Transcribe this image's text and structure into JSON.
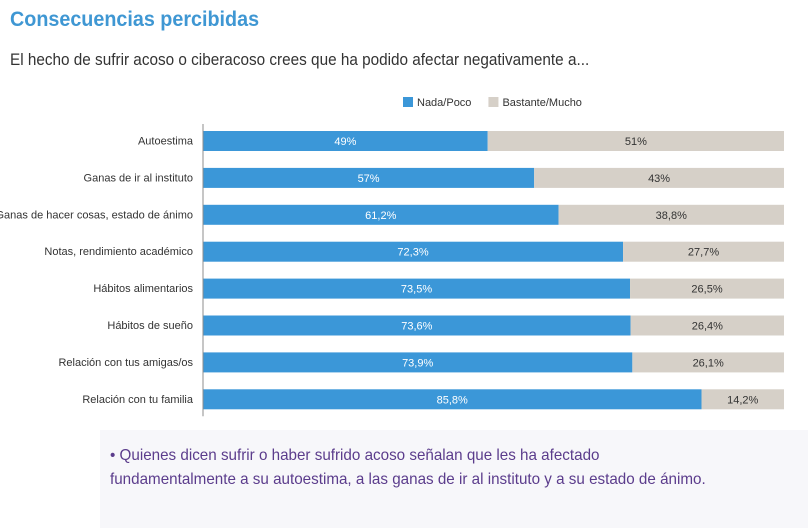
{
  "header": {
    "title": "Consecuencias percibidas",
    "subtitle": "El hecho de sufrir acoso o ciberacoso crees que ha podido afectar negativamente a..."
  },
  "chart_data": {
    "type": "bar",
    "orientation": "horizontal",
    "stacked": true,
    "categories": [
      "Autoestima",
      "Ganas de ir al instituto",
      "Ganas de hacer cosas, estado de ánimo",
      "Notas, rendimiento académico",
      "Hábitos alimentarios",
      "Hábitos de sueño",
      "Relación con tus amigas/os",
      "Relación con tu familia"
    ],
    "series": [
      {
        "name": "Nada/Poco",
        "color": "#3b97d8",
        "values": [
          49,
          57,
          61.2,
          72.3,
          73.5,
          73.6,
          73.9,
          85.8
        ],
        "labels": [
          "49%",
          "57%",
          "61,2%",
          "72,3%",
          "73,5%",
          "73,6%",
          "73,9%",
          "85,8%"
        ]
      },
      {
        "name": "Bastante/Mucho",
        "color": "#d6d0c8",
        "values": [
          51,
          43,
          38.8,
          27.7,
          26.5,
          26.4,
          26.1,
          14.2
        ],
        "labels": [
          "51%",
          "43%",
          "38,8%",
          "27,7%",
          "26,5%",
          "26,4%",
          "26,1%",
          "14,2%"
        ]
      }
    ],
    "xlim": [
      0,
      100
    ],
    "legend": "top-right",
    "grid": false
  },
  "footer": {
    "note_line1": "• Quienes dicen sufrir o haber sufrido acoso señalan que les ha afectado",
    "note_line2": "fundamentalmente a su autoestima, a las ganas de ir al instituto y a su estado de ánimo."
  }
}
